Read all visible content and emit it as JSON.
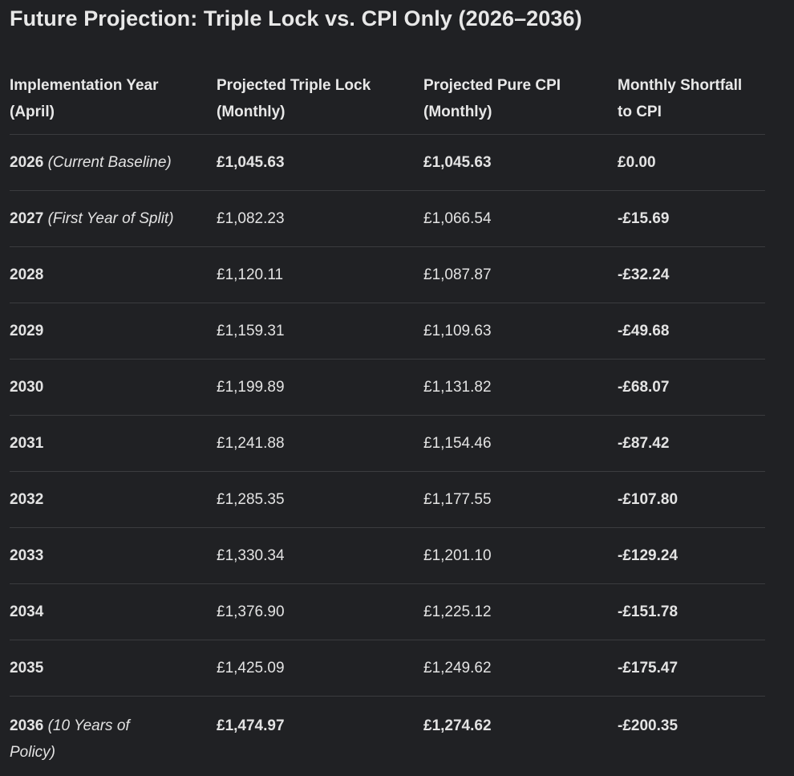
{
  "title": "Future Projection: Triple Lock vs. CPI Only (2026–2036)",
  "headers": [
    [
      "Implementation Year",
      "(April)"
    ],
    [
      "Projected Triple Lock",
      "(Monthly)"
    ],
    [
      "Projected Pure CPI",
      "(Monthly)"
    ],
    [
      "Monthly Shortfall",
      "to CPI"
    ]
  ],
  "rows": [
    {
      "year": "2026",
      "note": "(Current Baseline)",
      "triple": "£1,045.63",
      "cpi": "£1,045.63",
      "shortfall": "£0.00"
    },
    {
      "year": "2027",
      "note": "(First Year of Split)",
      "triple": "£1,082.23",
      "cpi": "£1,066.54",
      "shortfall": "-£15.69"
    },
    {
      "year": "2028",
      "note": "",
      "triple": "£1,120.11",
      "cpi": "£1,087.87",
      "shortfall": "-£32.24"
    },
    {
      "year": "2029",
      "note": "",
      "triple": "£1,159.31",
      "cpi": "£1,109.63",
      "shortfall": "-£49.68"
    },
    {
      "year": "2030",
      "note": "",
      "triple": "£1,199.89",
      "cpi": "£1,131.82",
      "shortfall": "-£68.07"
    },
    {
      "year": "2031",
      "note": "",
      "triple": "£1,241.88",
      "cpi": "£1,154.46",
      "shortfall": "-£87.42"
    },
    {
      "year": "2032",
      "note": "",
      "triple": "£1,285.35",
      "cpi": "£1,177.55",
      "shortfall": "-£107.80"
    },
    {
      "year": "2033",
      "note": "",
      "triple": "£1,330.34",
      "cpi": "£1,201.10",
      "shortfall": "-£129.24"
    },
    {
      "year": "2034",
      "note": "",
      "triple": "£1,376.90",
      "cpi": "£1,225.12",
      "shortfall": "-£151.78"
    },
    {
      "year": "2035",
      "note": "",
      "triple": "£1,425.09",
      "cpi": "£1,249.62",
      "shortfall": "-£175.47"
    },
    {
      "year": "2036",
      "note": "(10 Years of",
      "note2": "Policy)",
      "triple": "£1,474.97",
      "cpi": "£1,274.62",
      "shortfall": "-£200.35"
    }
  ],
  "colors": {
    "background": "#202124",
    "text": "#e3e3e3",
    "divider": "#3b3c3f"
  }
}
